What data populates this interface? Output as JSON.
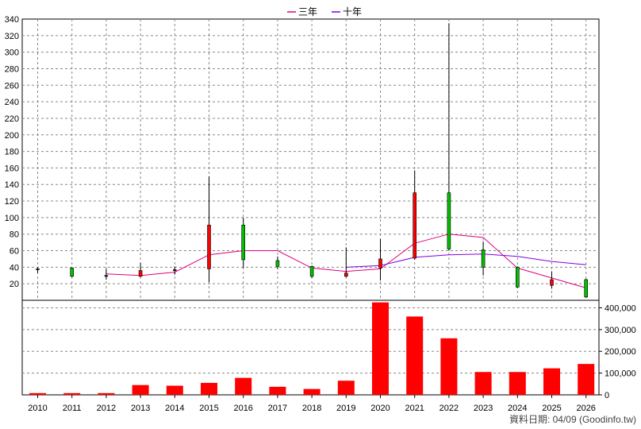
{
  "chart_data": {
    "type": "candlestick-with-volume",
    "legend": [
      {
        "name": "三年",
        "color": "#e0007f"
      },
      {
        "name": "十年",
        "color": "#8000e0"
      }
    ],
    "grid": true,
    "x_categories": [
      "2010",
      "2011",
      "2012",
      "2013",
      "2014",
      "2015",
      "2016",
      "2017",
      "2018",
      "2019",
      "2020",
      "2021",
      "2022",
      "2023",
      "2024",
      "2025",
      "2026"
    ],
    "price_axis": {
      "ylim": [
        0,
        340
      ],
      "ticks": [
        "20",
        "40",
        "60",
        "80",
        "100",
        "120",
        "140",
        "160",
        "180",
        "200",
        "220",
        "240",
        "260",
        "280",
        "300",
        "320",
        "340"
      ],
      "side": "left"
    },
    "volume_axis": {
      "ylim": [
        0,
        420000
      ],
      "ticks": [
        "0",
        "100,000",
        "200,000",
        "300,000",
        "400,000"
      ],
      "side": "right"
    },
    "candles": [
      {
        "year": "2010",
        "open": 38,
        "close": 38,
        "high": 40,
        "low": 33,
        "color": "#000000"
      },
      {
        "year": "2011",
        "open": 29,
        "close": 39,
        "high": 40,
        "low": 28,
        "color": "#00c000"
      },
      {
        "year": "2012",
        "open": 30,
        "close": 29,
        "high": 38,
        "low": 25,
        "color": "#000000"
      },
      {
        "year": "2013",
        "open": 29,
        "close": 36,
        "high": 45,
        "low": 28,
        "color": "#ff0000"
      },
      {
        "year": "2014",
        "open": 36,
        "close": 37,
        "high": 41,
        "low": 31,
        "color": "#000000"
      },
      {
        "year": "2015",
        "open": 38,
        "close": 91,
        "high": 150,
        "low": 22,
        "color": "#ff0000"
      },
      {
        "year": "2016",
        "open": 91,
        "close": 49,
        "high": 100,
        "low": 39,
        "color": "#00c000"
      },
      {
        "year": "2017",
        "open": 48,
        "close": 41,
        "high": 53,
        "low": 38,
        "color": "#00c000"
      },
      {
        "year": "2018",
        "open": 41,
        "close": 29,
        "high": 42,
        "low": 27,
        "color": "#00c000"
      },
      {
        "year": "2019",
        "open": 29,
        "close": 33,
        "high": 64,
        "low": 28,
        "color": "#ff0000"
      },
      {
        "year": "2020",
        "open": 39,
        "close": 50,
        "high": 74,
        "low": 24,
        "color": "#ff0000"
      },
      {
        "year": "2021",
        "open": 51,
        "close": 130,
        "high": 157,
        "low": 49,
        "color": "#ff0000"
      },
      {
        "year": "2022",
        "open": 130,
        "close": 62,
        "high": 335,
        "low": 60,
        "color": "#00c000"
      },
      {
        "year": "2023",
        "open": 61,
        "close": 40,
        "high": 71,
        "low": 30,
        "color": "#00c000"
      },
      {
        "year": "2024",
        "open": 40,
        "close": 16,
        "high": 41,
        "low": 15,
        "color": "#00c000"
      },
      {
        "year": "2025",
        "open": 18,
        "close": 25,
        "high": 35,
        "low": 14,
        "color": "#ff0000"
      },
      {
        "year": "2026",
        "open": 25,
        "close": 4,
        "high": 26,
        "low": 3,
        "color": "#00c000"
      }
    ],
    "series": [
      {
        "name": "三年",
        "color": "#e0007f",
        "values": [
          null,
          null,
          32,
          30,
          34,
          55,
          60,
          60,
          39,
          35,
          38,
          69,
          80,
          76,
          39,
          27,
          15
        ]
      },
      {
        "name": "十年",
        "color": "#8000e0",
        "values": [
          null,
          null,
          null,
          null,
          null,
          null,
          null,
          null,
          null,
          40,
          42,
          52,
          55,
          56,
          53,
          47,
          43
        ]
      }
    ],
    "volume": {
      "color": "#ff0000",
      "values": [
        8000,
        8000,
        8000,
        45000,
        42000,
        55000,
        78000,
        37000,
        27000,
        65000,
        425000,
        360000,
        260000,
        105000,
        105000,
        122000,
        142000
      ]
    }
  },
  "credit": "資料日期: 04/09  (Goodinfo.tw)"
}
